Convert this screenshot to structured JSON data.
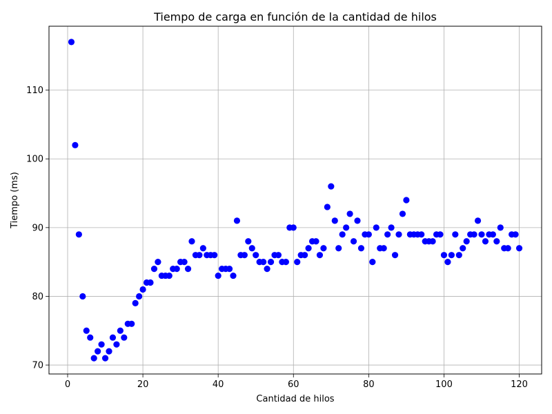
{
  "chart_data": {
    "type": "scatter",
    "title": "Tiempo de carga en función de la cantidad de hilos",
    "xlabel": "Cantidad de hilos",
    "ylabel": "Tiempo (ms)",
    "xlim": [
      -4.95,
      125.95
    ],
    "ylim": [
      68.7,
      119.3
    ],
    "xticks": [
      0,
      20,
      40,
      60,
      80,
      100,
      120
    ],
    "yticks": [
      70,
      80,
      90,
      100,
      110
    ],
    "grid": true,
    "marker_color": "#0000ff",
    "x": [
      1,
      2,
      3,
      4,
      5,
      6,
      7,
      8,
      9,
      10,
      11,
      12,
      13,
      14,
      15,
      16,
      17,
      18,
      19,
      20,
      21,
      22,
      23,
      24,
      25,
      26,
      27,
      28,
      29,
      30,
      31,
      32,
      33,
      34,
      35,
      36,
      37,
      38,
      39,
      40,
      41,
      42,
      43,
      44,
      45,
      46,
      47,
      48,
      49,
      50,
      51,
      52,
      53,
      54,
      55,
      56,
      57,
      58,
      59,
      60,
      61,
      62,
      63,
      64,
      65,
      66,
      67,
      68,
      69,
      70,
      71,
      72,
      73,
      74,
      75,
      76,
      77,
      78,
      79,
      80,
      81,
      82,
      83,
      84,
      85,
      86,
      87,
      88,
      89,
      90,
      91,
      92,
      93,
      94,
      95,
      96,
      97,
      98,
      99,
      100,
      101,
      102,
      103,
      104,
      105,
      106,
      107,
      108,
      109,
      110,
      111,
      112,
      113,
      114,
      115,
      116,
      117,
      118,
      119,
      120
    ],
    "y": [
      117,
      102,
      89,
      80,
      75,
      74,
      71,
      72,
      73,
      71,
      72,
      74,
      73,
      75,
      74,
      76,
      76,
      79,
      80,
      81,
      82,
      82,
      84,
      85,
      83,
      83,
      83,
      84,
      84,
      85,
      85,
      84,
      88,
      86,
      86,
      87,
      86,
      86,
      86,
      83,
      84,
      84,
      84,
      83,
      91,
      86,
      86,
      88,
      87,
      86,
      85,
      85,
      84,
      85,
      86,
      86,
      85,
      85,
      90,
      90,
      85,
      86,
      86,
      87,
      88,
      88,
      86,
      87,
      93,
      96,
      91,
      87,
      89,
      90,
      92,
      88,
      91,
      87,
      89,
      89,
      85,
      90,
      87,
      87,
      89,
      90,
      86,
      89,
      92,
      94,
      89,
      89,
      89,
      89,
      88,
      88,
      88,
      89,
      89,
      86,
      85,
      86,
      89,
      86,
      87,
      88,
      89,
      89,
      91,
      89,
      88,
      89,
      89,
      88,
      90,
      87,
      87,
      89,
      89,
      87
    ]
  }
}
